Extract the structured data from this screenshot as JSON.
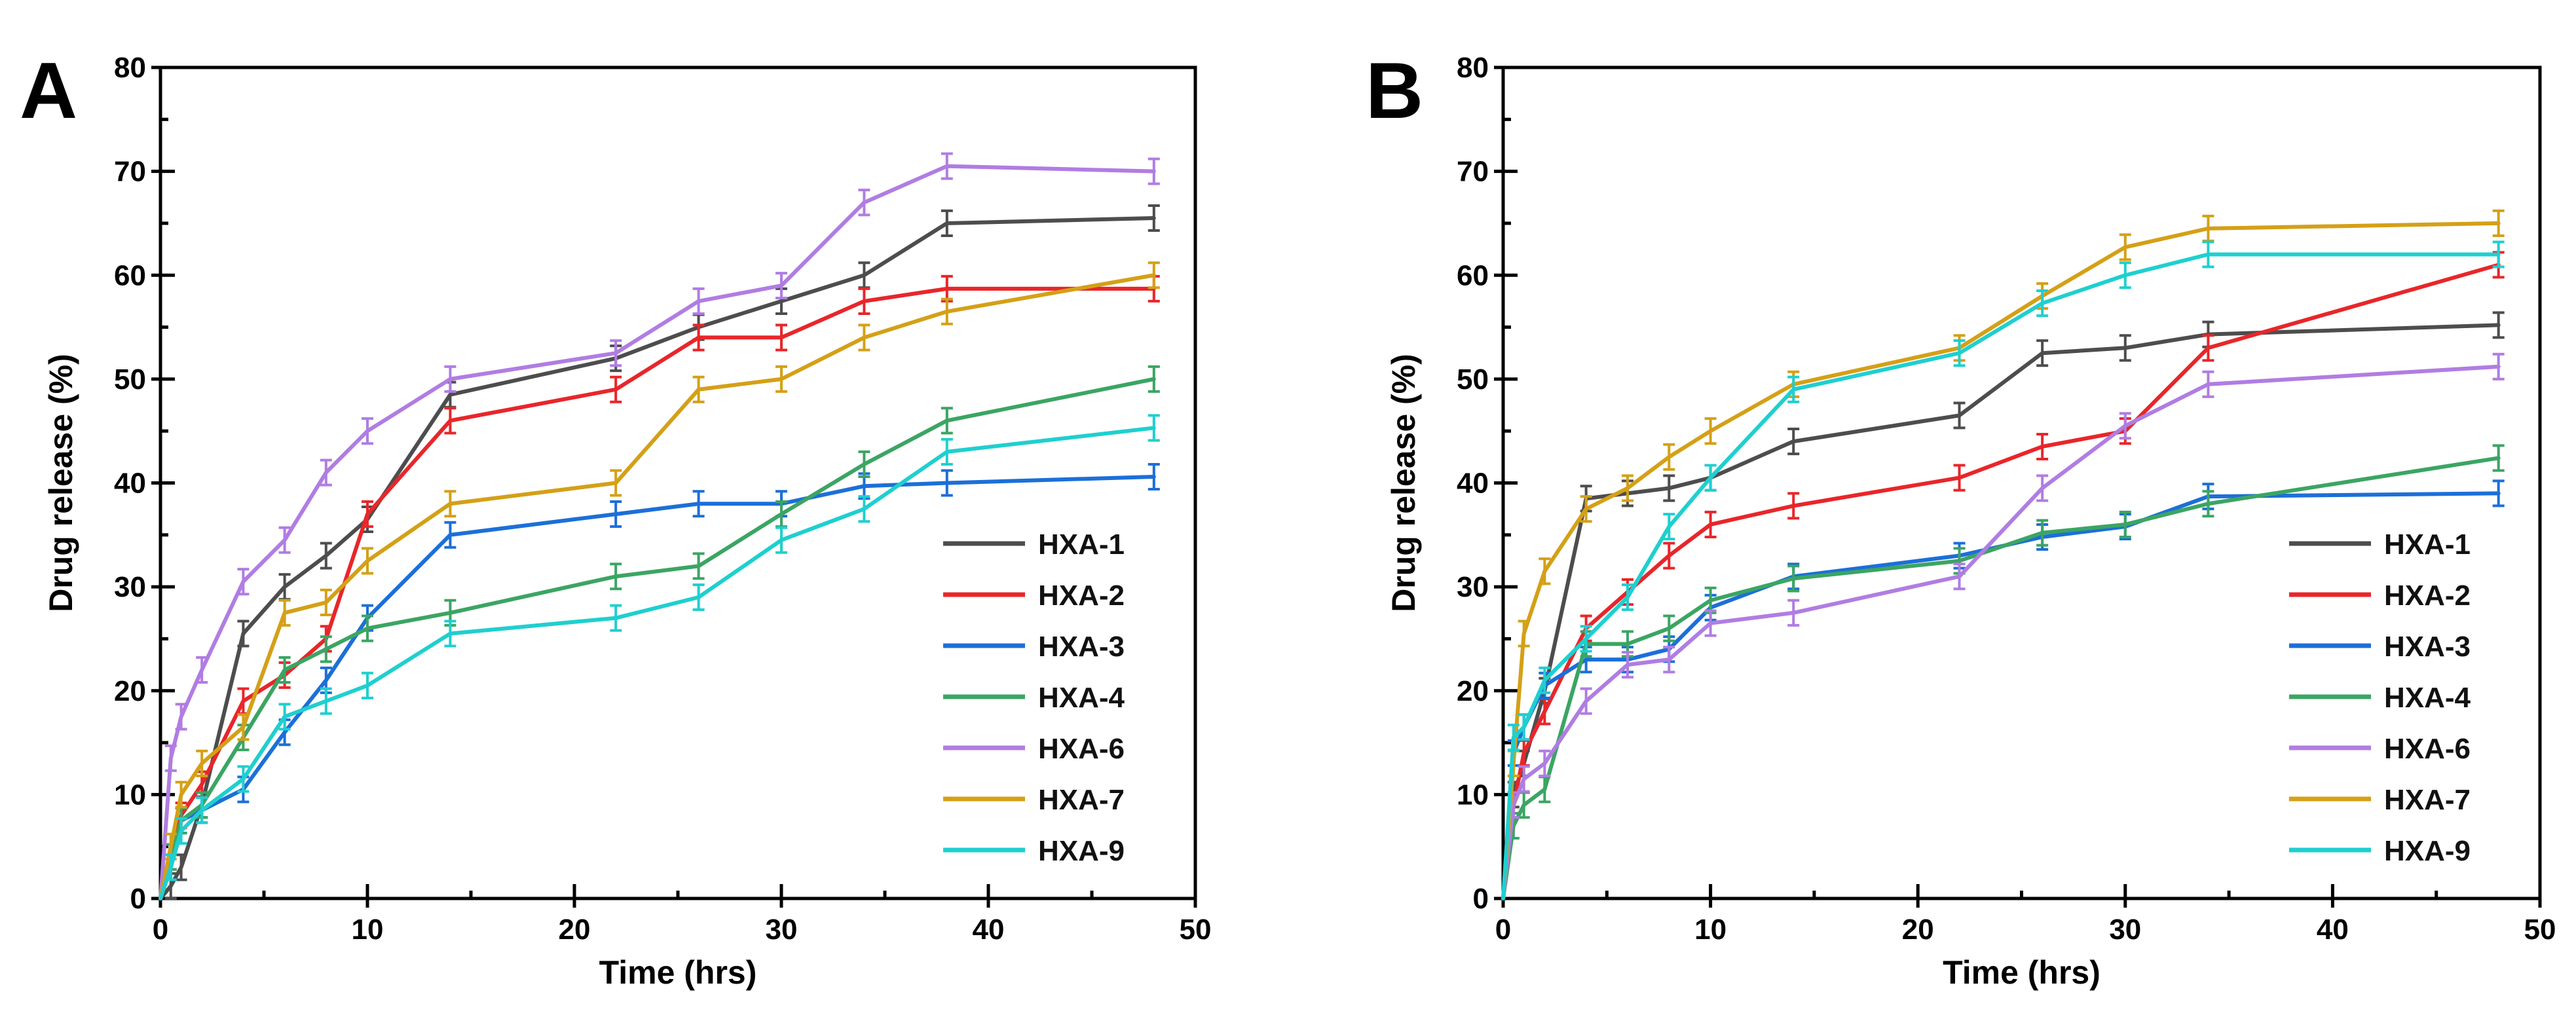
{
  "chart_data": [
    {
      "type": "line",
      "panel_label": "A",
      "xlabel": "Time (hrs)",
      "ylabel": "Drug release (%)",
      "xlim": [
        0,
        50
      ],
      "ylim": [
        0,
        80
      ],
      "xticks": [
        0,
        10,
        20,
        30,
        40,
        50
      ],
      "yticks": [
        0,
        10,
        20,
        30,
        40,
        50,
        60,
        70,
        80
      ],
      "x": [
        0,
        0.5,
        1,
        2,
        4,
        6,
        8,
        10,
        14,
        22,
        26,
        30,
        34,
        38,
        48
      ],
      "legend_position": "center-right",
      "series": [
        {
          "name": "HXA-1",
          "color": "#4d4d4d",
          "values": [
            0,
            1.2,
            3,
            9,
            25.5,
            30,
            33,
            36.5,
            48.5,
            52,
            55,
            57.5,
            60,
            65,
            65.5
          ],
          "err": 1.2
        },
        {
          "name": "HXA-2",
          "color": "#e8262a",
          "values": [
            0,
            4,
            8,
            11,
            19,
            21.5,
            25,
            37,
            46,
            49,
            54,
            54,
            57.5,
            58.7,
            58.7
          ],
          "err": 1.2
        },
        {
          "name": "HXA-3",
          "color": "#1c6fd8",
          "values": [
            0,
            3,
            7.5,
            8.5,
            10.5,
            16,
            21,
            27,
            35,
            37,
            38,
            38,
            39.7,
            40,
            40.6
          ],
          "err": 1.2
        },
        {
          "name": "HXA-4",
          "color": "#3ba563",
          "values": [
            0,
            4,
            7.5,
            9,
            15.5,
            22,
            24,
            26,
            27.5,
            31,
            32,
            37,
            41.8,
            46,
            50
          ],
          "err": 1.2
        },
        {
          "name": "HXA-6",
          "color": "#b07de2",
          "values": [
            0,
            13.5,
            17.5,
            22,
            30.5,
            34.5,
            41,
            45,
            50,
            52.5,
            57.5,
            59,
            67,
            70.5,
            70
          ],
          "err": 1.2
        },
        {
          "name": "HXA-7",
          "color": "#d4a017",
          "values": [
            0,
            5,
            10,
            13,
            16.5,
            27.5,
            28.5,
            32.5,
            38,
            40,
            49,
            50,
            54,
            56.5,
            60
          ],
          "err": 1.2
        },
        {
          "name": "HXA-9",
          "color": "#1fcfcf",
          "values": [
            0,
            3,
            6.5,
            8.5,
            11.5,
            17.5,
            19,
            20.5,
            25.5,
            27,
            29,
            34.5,
            37.5,
            43,
            45.3
          ],
          "err": 1.2
        }
      ]
    },
    {
      "type": "line",
      "panel_label": "B",
      "xlabel": "Time (hrs)",
      "ylabel": "Drug release (%)",
      "xlim": [
        0,
        50
      ],
      "ylim": [
        0,
        80
      ],
      "xticks": [
        0,
        10,
        20,
        30,
        40,
        50
      ],
      "yticks": [
        0,
        10,
        20,
        30,
        40,
        50,
        60,
        70,
        80
      ],
      "x": [
        0,
        0.5,
        1,
        2,
        4,
        6,
        8,
        10,
        14,
        22,
        26,
        30,
        34,
        48
      ],
      "legend_position": "center-right",
      "series": [
        {
          "name": "HXA-1",
          "color": "#4d4d4d",
          "values": [
            0,
            10,
            13,
            20,
            38.5,
            39,
            39.5,
            40.5,
            44,
            46.5,
            52.5,
            53,
            54.3,
            55.2
          ],
          "err": 1.2
        },
        {
          "name": "HXA-2",
          "color": "#e8262a",
          "values": [
            0,
            9,
            14,
            18,
            26,
            29.5,
            33,
            36,
            37.8,
            40.5,
            43.5,
            45,
            53,
            61
          ],
          "err": 1.2
        },
        {
          "name": "HXA-3",
          "color": "#1c6fd8",
          "values": [
            0,
            14,
            16.5,
            20.5,
            23,
            23,
            24,
            28,
            31,
            33,
            34.8,
            35.8,
            38.7,
            39
          ],
          "err": 1.2
        },
        {
          "name": "HXA-4",
          "color": "#3ba563",
          "values": [
            0,
            7,
            9,
            10.5,
            24.5,
            24.5,
            26,
            28.7,
            30.8,
            32.5,
            35.2,
            36,
            38,
            42.4
          ],
          "err": 1.2
        },
        {
          "name": "HXA-6",
          "color": "#b07de2",
          "values": [
            0,
            9,
            11.5,
            13,
            19,
            22.5,
            23,
            26.5,
            27.5,
            31,
            39.5,
            45.5,
            49.5,
            51.2
          ],
          "err": 1.2
        },
        {
          "name": "HXA-7",
          "color": "#d4a017",
          "values": [
            0,
            13,
            25.5,
            31.5,
            37.5,
            39.5,
            42.5,
            45,
            49.5,
            53,
            58,
            62.7,
            64.5,
            65
          ],
          "err": 1.2
        },
        {
          "name": "HXA-9",
          "color": "#1fcfcf",
          "values": [
            0,
            15.5,
            16.5,
            21,
            25,
            29,
            35.8,
            40.5,
            49,
            52.5,
            57.3,
            60,
            62,
            62
          ],
          "err": 1.2
        }
      ]
    }
  ]
}
